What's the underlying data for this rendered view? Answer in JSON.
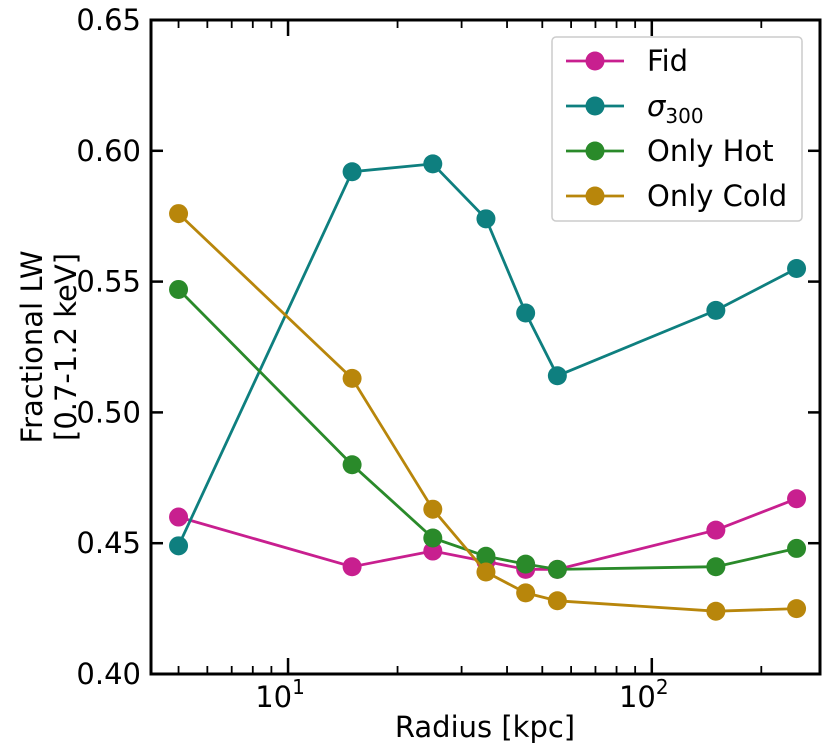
{
  "chart_data": {
    "type": "line",
    "xlabel": "Radius [kpc]",
    "ylabel_line1": "Fractional LW",
    "ylabel_line2": "[0.7-1.2 keV]",
    "xscale": "log",
    "xlim": [
      4.2,
      290
    ],
    "ylim": [
      0.4,
      0.65
    ],
    "yticks": [
      "0.40",
      "0.45",
      "0.50",
      "0.55",
      "0.60",
      "0.65"
    ],
    "xticks": [
      {
        "value": 10,
        "base": "10",
        "exp": "1"
      },
      {
        "value": 100,
        "base": "10",
        "exp": "2"
      }
    ],
    "legend_position": "top-right",
    "grid": false,
    "x": [
      5,
      15,
      25,
      35,
      45,
      55,
      150,
      250
    ],
    "series": [
      {
        "name": "Fid",
        "name_main": "Fid",
        "name_sub": "",
        "color": "#c81f8f",
        "values": [
          0.46,
          0.441,
          0.447,
          0.443,
          0.44,
          0.44,
          0.455,
          0.467
        ]
      },
      {
        "name": "σ300",
        "name_main": "σ",
        "name_sub": "300",
        "color": "#0e7f7f",
        "values": [
          0.449,
          0.592,
          0.595,
          0.574,
          0.538,
          0.514,
          0.539,
          0.555
        ]
      },
      {
        "name": "Only Hot",
        "name_main": "Only Hot",
        "name_sub": "",
        "color": "#2a8a2a",
        "values": [
          0.547,
          0.48,
          0.452,
          0.445,
          0.442,
          0.44,
          0.441,
          0.448
        ]
      },
      {
        "name": "Only Cold",
        "name_main": "Only Cold",
        "name_sub": "",
        "color": "#b8860b",
        "values": [
          0.576,
          0.513,
          0.463,
          0.439,
          0.431,
          0.428,
          0.424,
          0.425
        ]
      }
    ]
  }
}
